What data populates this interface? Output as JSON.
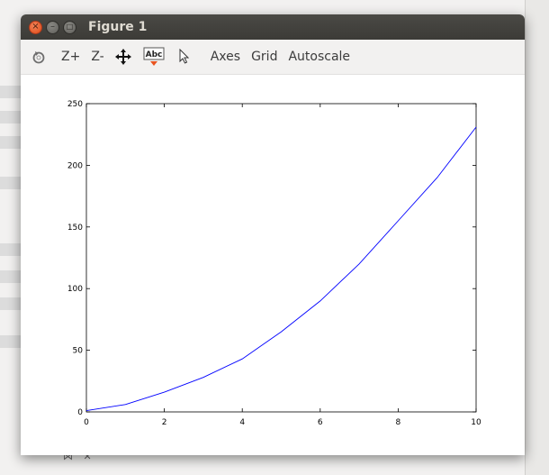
{
  "window": {
    "title": "Figure 1"
  },
  "toolbar": {
    "items": [
      {
        "type": "icon",
        "name": "rotate-icon"
      },
      {
        "type": "text",
        "label": "Z+"
      },
      {
        "type": "text",
        "label": "Z-"
      },
      {
        "type": "icon",
        "name": "pan-arrows-icon"
      },
      {
        "type": "icon",
        "name": "text-annotate-icon",
        "text": "Abc"
      },
      {
        "type": "icon",
        "name": "pointer-icon"
      },
      {
        "type": "text",
        "label": "Axes"
      },
      {
        "type": "text",
        "label": "Grid"
      },
      {
        "type": "text",
        "label": "Autoscale"
      }
    ]
  },
  "chart_data": {
    "type": "line",
    "xlim": [
      0,
      10
    ],
    "ylim": [
      0,
      250
    ],
    "xticks": [
      0,
      2,
      4,
      6,
      8,
      10
    ],
    "yticks": [
      0,
      50,
      100,
      150,
      200,
      250
    ],
    "grid": false,
    "series": [
      {
        "color": "#0000ff",
        "x": [
          0,
          1,
          2,
          3,
          4,
          5,
          6,
          7,
          8,
          9,
          10
        ],
        "y": [
          1,
          6,
          16,
          28,
          43,
          65,
          90,
          120,
          155,
          190,
          231
        ]
      }
    ]
  },
  "colors": {
    "titlebar": "#3c3b37",
    "close_button": "#df4a16",
    "line": "#0000ff"
  }
}
